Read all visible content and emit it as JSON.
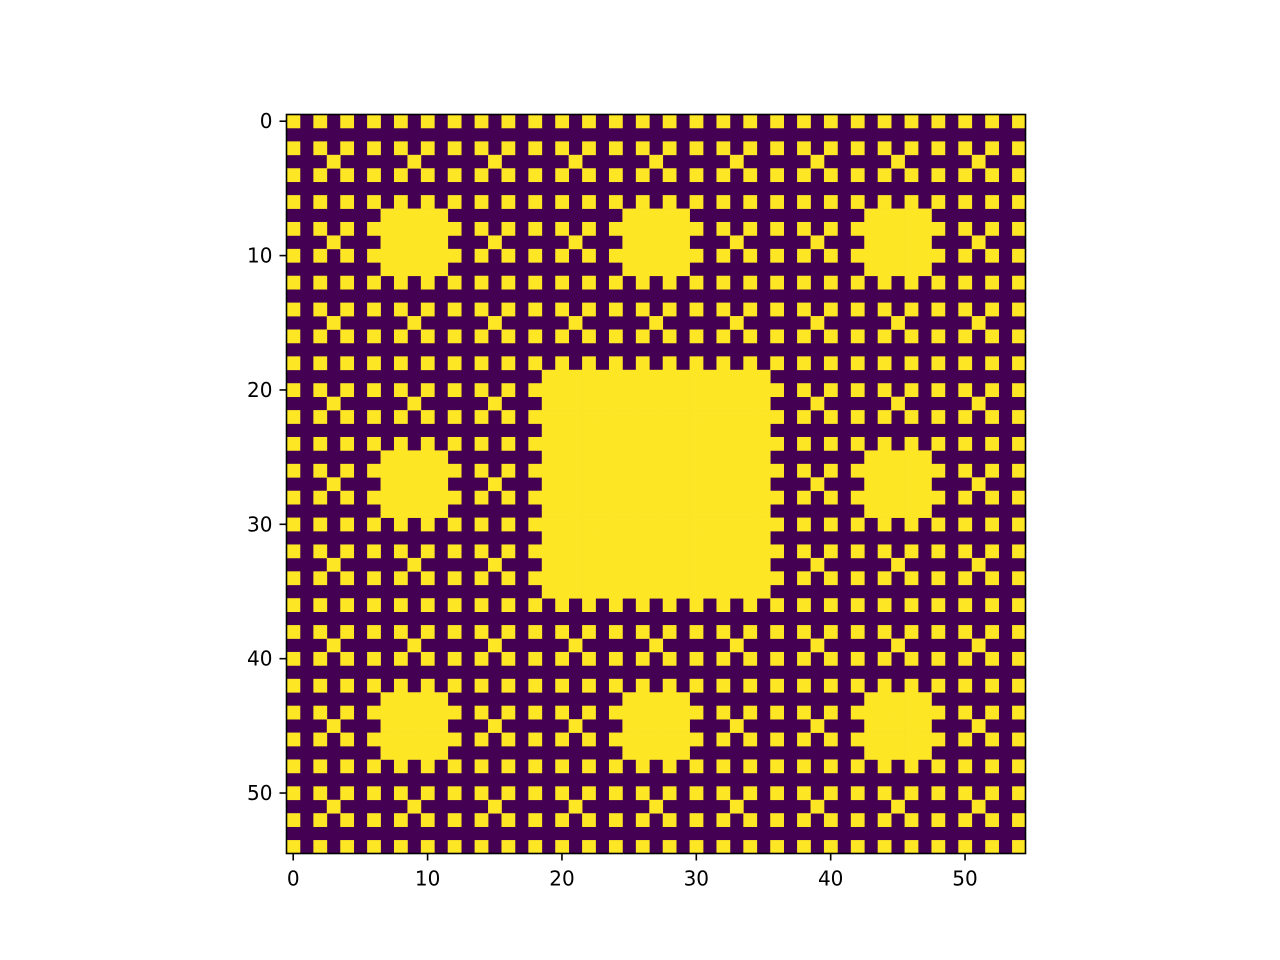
{
  "chart_data": {
    "type": "heatmap",
    "title": "",
    "xlabel": "",
    "ylabel": "",
    "shape": [
      55,
      55
    ],
    "pattern": "A 55x55 binary image (0 = dark purple, 1 = yellow). Cell (i,j) is yellow if (i,j) lies in a yellow block (centers 27; 9, 45; 9, 27, 45 at scale 9; 3, 9, ... at scale 3), else it follows the checkerboard-style background: yellow when row i and column j are both even, or when i mod 6 == 3 and j mod 6 == 3.",
    "background_rule": "yellow if (i % 2 == 0 and j % 2 == 0) or (i % 6 == 3 and j % 6 == 3)",
    "blocks": [
      {
        "center_row": 27,
        "center_col": 27,
        "half_size": 8
      },
      {
        "center_row": 9,
        "center_col": 9,
        "half_size": 2
      },
      {
        "center_row": 9,
        "center_col": 27,
        "half_size": 2
      },
      {
        "center_row": 9,
        "center_col": 45,
        "half_size": 2
      },
      {
        "center_row": 27,
        "center_col": 9,
        "half_size": 2
      },
      {
        "center_row": 27,
        "center_col": 45,
        "half_size": 2
      },
      {
        "center_row": 45,
        "center_col": 9,
        "half_size": 2
      },
      {
        "center_row": 45,
        "center_col": 27,
        "half_size": 2
      },
      {
        "center_row": 45,
        "center_col": 45,
        "half_size": 2
      }
    ],
    "x_ticks": [
      0,
      10,
      20,
      30,
      40,
      50
    ],
    "y_ticks": [
      0,
      10,
      20,
      30,
      40,
      50
    ],
    "xlim": [
      -0.5,
      54.5
    ],
    "ylim": [
      54.5,
      -0.5
    ],
    "colors": {
      "low": "#440154",
      "high": "#fde725"
    },
    "grid": false,
    "legend": "none"
  }
}
